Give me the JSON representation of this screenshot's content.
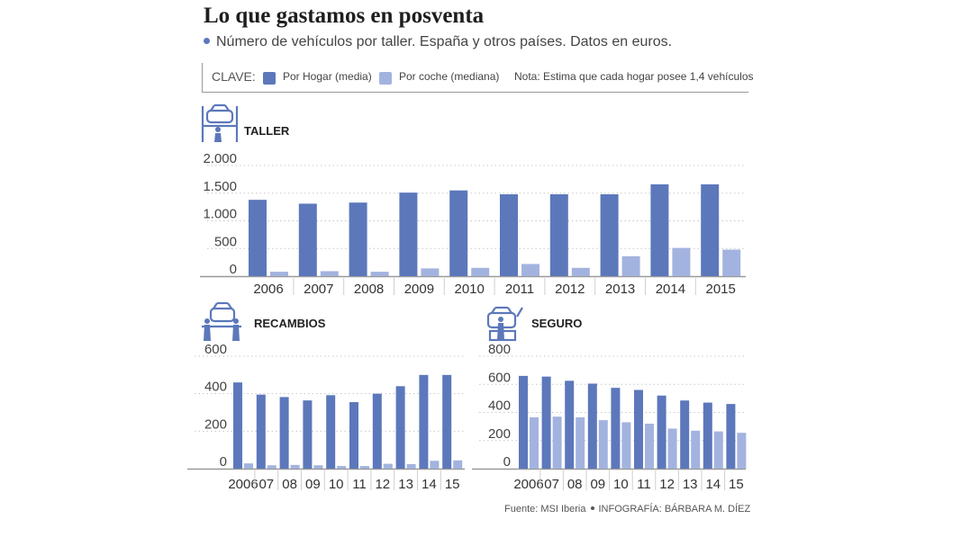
{
  "title": "Lo que gastamos en posventa",
  "subtitle": "Número de vehículos por taller. España y otros países. Datos en euros.",
  "key": {
    "label": "CLAVE:",
    "series1": "Por Hogar (media)",
    "series2": "Por coche (mediana)",
    "note": "Nota: Estima que cada hogar posee 1,4 vehículos"
  },
  "colors": {
    "dark": "#5c78bb",
    "light": "#a3b3df",
    "grid": "#c8c8c8",
    "axis": "#9a9a9a"
  },
  "icons": [
    "car-lift-icon",
    "mechanics-icon",
    "insurance-car-icon"
  ],
  "sections": {
    "taller": "TALLER",
    "recambios": "RECAMBIOS",
    "seguro": "SEGURO"
  },
  "footer": {
    "source": "Fuente: MSI Iberia",
    "credit": "INFOGRAFÍA: BÁRBARA M. DÍEZ"
  },
  "chart_data": [
    {
      "type": "bar",
      "title": "TALLER",
      "categories": [
        "2006",
        "2007",
        "2008",
        "2009",
        "2010",
        "2011",
        "2012",
        "2013",
        "2014",
        "2015"
      ],
      "ylim": [
        0,
        2000
      ],
      "yticks": [
        0,
        500,
        1000,
        1500,
        2000
      ],
      "ytick_labels": [
        "0",
        "500",
        "1.000",
        "1.500",
        "2.000"
      ],
      "grid": true,
      "series": [
        {
          "name": "Por Hogar (media)",
          "values": [
            1380,
            1310,
            1330,
            1510,
            1550,
            1480,
            1480,
            1480,
            1660,
            1660
          ]
        },
        {
          "name": "Por coche (mediana)",
          "values": [
            80,
            90,
            80,
            140,
            150,
            220,
            150,
            360,
            510,
            480
          ]
        }
      ]
    },
    {
      "type": "bar",
      "title": "RECAMBIOS",
      "categories": [
        "2006",
        "07",
        "08",
        "09",
        "10",
        "11",
        "12",
        "13",
        "14",
        "15"
      ],
      "ylim": [
        0,
        600
      ],
      "yticks": [
        0,
        200,
        400,
        600
      ],
      "ytick_labels": [
        "0",
        "200",
        "400",
        "600"
      ],
      "grid": true,
      "series": [
        {
          "name": "Por Hogar (media)",
          "values": [
            460,
            395,
            382,
            364,
            392,
            355,
            400,
            440,
            500,
            500
          ]
        },
        {
          "name": "Por coche (mediana)",
          "values": [
            28,
            18,
            20,
            18,
            14,
            14,
            26,
            24,
            42,
            44
          ]
        }
      ]
    },
    {
      "type": "bar",
      "title": "SEGURO",
      "categories": [
        "2006",
        "07",
        "08",
        "09",
        "10",
        "11",
        "12",
        "13",
        "14",
        "15"
      ],
      "ylim": [
        0,
        800
      ],
      "yticks": [
        0,
        200,
        400,
        600,
        800
      ],
      "ytick_labels": [
        "0",
        "200",
        "400",
        "600",
        "800"
      ],
      "grid": true,
      "series": [
        {
          "name": "Por Hogar (media)",
          "values": [
            660,
            655,
            625,
            605,
            575,
            560,
            520,
            485,
            470,
            460
          ]
        },
        {
          "name": "Por coche (mediana)",
          "values": [
            365,
            370,
            365,
            345,
            330,
            320,
            285,
            270,
            265,
            255
          ]
        }
      ]
    }
  ]
}
